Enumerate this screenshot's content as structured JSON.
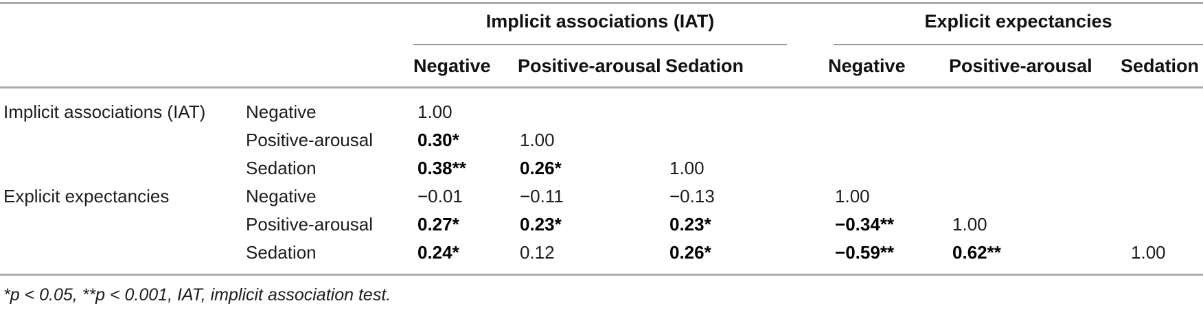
{
  "table": {
    "column_groups": [
      {
        "label": "Implicit associations (IAT)"
      },
      {
        "label": "Explicit expectancies"
      }
    ],
    "sub_headers": [
      "Negative",
      "Positive-arousal",
      "Sedation",
      "Negative",
      "Positive-arousal",
      "Sedation"
    ],
    "rows": [
      {
        "group": "Implicit associations (IAT)",
        "label": "Negative",
        "values": [
          "1.00",
          "",
          "",
          "",
          "",
          ""
        ]
      },
      {
        "group": "",
        "label": "Positive-arousal",
        "values": [
          "0.30*",
          "1.00",
          "",
          "",
          "",
          ""
        ]
      },
      {
        "group": "",
        "label": "Sedation",
        "values": [
          "0.38**",
          "0.26*",
          "1.00",
          "",
          "",
          ""
        ]
      },
      {
        "group": "Explicit expectancies",
        "label": "Negative",
        "values": [
          "−0.01",
          "−0.11",
          "−0.13",
          "1.00",
          "",
          ""
        ]
      },
      {
        "group": "",
        "label": "Positive-arousal",
        "values": [
          "0.27*",
          "0.23*",
          "0.23*",
          "−0.34**",
          "1.00",
          ""
        ]
      },
      {
        "group": "",
        "label": "Sedation",
        "values": [
          "0.24*",
          "0.12",
          "0.26*",
          "−0.59**",
          "0.62**",
          "1.00"
        ]
      }
    ],
    "footnote": "*p < 0.05, **p < 0.001, IAT, implicit association test."
  },
  "colors": {
    "rule": "#ababab",
    "spanner_rule": "#9b9b9b",
    "text": "#1c1c1c",
    "bold_text": "#000000"
  }
}
